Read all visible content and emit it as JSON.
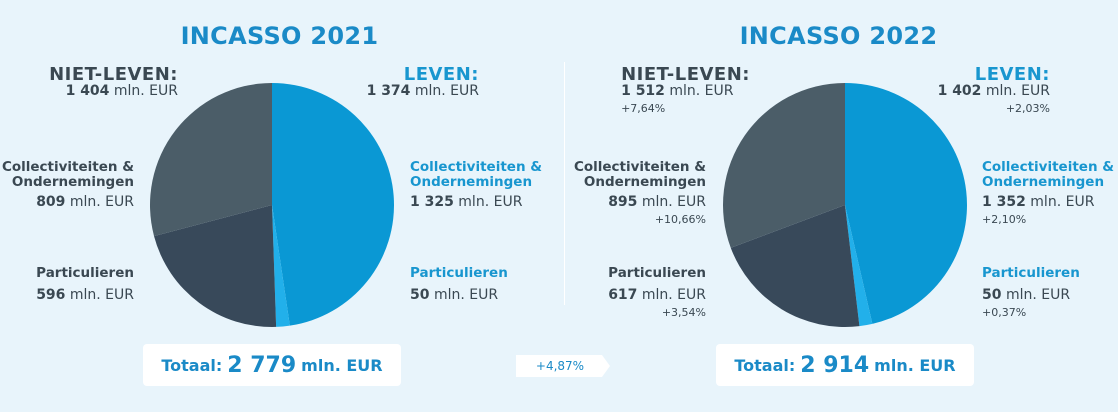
{
  "charts": [
    {
      "title": "INCASSO 2021",
      "niet_leven": {
        "label": "NIET-LEVEN:",
        "amount": "1 404",
        "unit": "mln. EUR",
        "change": ""
      },
      "leven": {
        "label": "LEVEN:",
        "amount": "1 374",
        "unit": "mln. EUR",
        "change": ""
      },
      "nl_collectiviteiten": {
        "label_line1": "Collectiviteiten &",
        "label_line2": "Ondernemingen",
        "amount": "809",
        "unit": "mln. EUR",
        "change": ""
      },
      "nl_particulieren": {
        "label": "Particulieren",
        "amount": "596",
        "unit": "mln. EUR",
        "change": ""
      },
      "l_collectiviteiten": {
        "label_line1": "Collectiviteiten &",
        "label_line2": "Ondernemingen",
        "amount": "1 325",
        "unit": "mln. EUR",
        "change": ""
      },
      "l_particulieren": {
        "label": "Particulieren",
        "amount": "50",
        "unit": "mln. EUR",
        "change": ""
      },
      "total": {
        "prefix": "Totaal:",
        "amount": "2 779",
        "unit": "mln. EUR"
      }
    },
    {
      "title": "INCASSO 2022",
      "niet_leven": {
        "label": "NIET-LEVEN:",
        "amount": "1 512",
        "unit": "mln. EUR",
        "change": "+7,64%"
      },
      "leven": {
        "label": "LEVEN:",
        "amount": "1 402",
        "unit": "mln. EUR",
        "change": "+2,03%"
      },
      "nl_collectiviteiten": {
        "label_line1": "Collectiviteiten &",
        "label_line2": "Ondernemingen",
        "amount": "895",
        "unit": "mln. EUR",
        "change": "+10,66%"
      },
      "nl_particulieren": {
        "label": "Particulieren",
        "amount": "617",
        "unit": "mln. EUR",
        "change": "+3,54%"
      },
      "l_collectiviteiten": {
        "label_line1": "Collectiviteiten &",
        "label_line2": "Ondernemingen",
        "amount": "1 352",
        "unit": "mln. EUR",
        "change": "+2,10%"
      },
      "l_particulieren": {
        "label": "Particulieren",
        "amount": "50",
        "unit": "mln. EUR",
        "change": "+0,37%"
      },
      "total": {
        "prefix": "Totaal:",
        "amount": "2 914",
        "unit": "mln. EUR"
      }
    }
  ],
  "growth": "+4,87%",
  "colors": {
    "leven_collectiviteiten": "#0a98d4",
    "leven_particulieren": "#22b0ea",
    "nietleven_particulieren": "#38495a",
    "nietleven_collectiviteiten": "#4b5d68"
  },
  "chart_data": [
    {
      "type": "pie",
      "title": "INCASSO 2021",
      "unit": "mln. EUR",
      "slices": [
        {
          "name": "Collectiviteiten & Ondernemingen",
          "group": "LEVEN",
          "value": 1325
        },
        {
          "name": "Particulieren",
          "group": "LEVEN",
          "value": 50
        },
        {
          "name": "Particulieren",
          "group": "NIET-LEVEN",
          "value": 596
        },
        {
          "name": "Collectiviteiten & Ondernemingen",
          "group": "NIET-LEVEN",
          "value": 809
        }
      ]
    },
    {
      "type": "pie",
      "title": "INCASSO 2022",
      "unit": "mln. EUR",
      "slices": [
        {
          "name": "Collectiviteiten & Ondernemingen",
          "group": "LEVEN",
          "value": 1352
        },
        {
          "name": "Particulieren",
          "group": "LEVEN",
          "value": 50
        },
        {
          "name": "Particulieren",
          "group": "NIET-LEVEN",
          "value": 617
        },
        {
          "name": "Collectiviteiten & Ondernemingen",
          "group": "NIET-LEVEN",
          "value": 895
        }
      ]
    }
  ]
}
